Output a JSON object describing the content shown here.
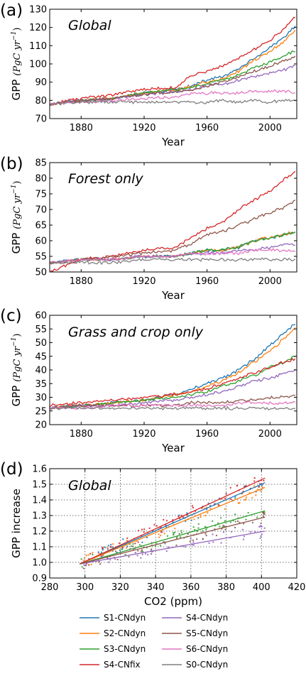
{
  "figure": {
    "legend": [
      {
        "name": "S1-CNdyn",
        "color": "#1f77b4"
      },
      {
        "name": "S2-CNdyn",
        "color": "#ff7f0e"
      },
      {
        "name": "S3-CNdyn",
        "color": "#2ca02c"
      },
      {
        "name": "S4-CNfix",
        "color": "#d62728"
      },
      {
        "name": "S4-CNdyn",
        "color": "#9467bd"
      },
      {
        "name": "S5-CNdyn",
        "color": "#8c564b"
      },
      {
        "name": "S6-CNdyn",
        "color": "#e377c2"
      },
      {
        "name": "S0-CNdyn",
        "color": "#7f7f7f"
      }
    ]
  },
  "chart_data": [
    {
      "panel": "(a)",
      "label": "Global",
      "type": "line",
      "xlabel": "Year",
      "ylabel": "GPP",
      "ylabel_unit": "(PgC yr",
      "xlim": [
        1860,
        2017
      ],
      "ylim": [
        70,
        130
      ],
      "xticks": [
        1880,
        1920,
        1960,
        2000
      ],
      "yticks": [
        70,
        80,
        90,
        100,
        110,
        120,
        130
      ],
      "x": [
        1860,
        1880,
        1900,
        1920,
        1940,
        1950,
        1960,
        1970,
        1980,
        1990,
        2000,
        2010,
        2016
      ],
      "series": [
        {
          "name": "S1-CNdyn",
          "color": "#1f77b4",
          "values": [
            78,
            80,
            81,
            84,
            86,
            88,
            91,
            93,
            97,
            103,
            109,
            115,
            121
          ]
        },
        {
          "name": "S2-CNdyn",
          "color": "#ff7f0e",
          "values": [
            78,
            80,
            81,
            84,
            86,
            88,
            90,
            92,
            96,
            102,
            107,
            113,
            118
          ]
        },
        {
          "name": "S3-CNdyn",
          "color": "#2ca02c",
          "values": [
            78,
            80,
            81,
            84,
            86,
            87,
            89,
            91,
            94,
            98,
            101,
            105,
            107
          ]
        },
        {
          "name": "S4-CNfix",
          "color": "#d62728",
          "values": [
            78,
            81,
            83,
            86,
            87,
            94,
            96,
            99,
            103,
            108,
            113,
            120,
            126
          ]
        },
        {
          "name": "S4-CNdyn",
          "color": "#9467bd",
          "values": [
            78,
            80,
            81,
            83,
            85,
            86,
            88,
            89,
            91,
            93,
            95,
            97,
            99
          ]
        },
        {
          "name": "S5-CNdyn",
          "color": "#8c564b",
          "values": [
            78,
            80,
            81,
            83,
            85,
            86,
            88,
            90,
            93,
            96,
            99,
            102,
            104
          ]
        },
        {
          "name": "S6-CNdyn",
          "color": "#e377c2",
          "values": [
            78,
            79,
            80,
            81,
            82,
            84,
            84,
            84,
            84,
            85,
            85,
            85,
            84
          ]
        },
        {
          "name": "S0-CNdyn",
          "color": "#7f7f7f",
          "values": [
            78,
            79,
            79,
            79,
            79,
            79,
            79,
            80,
            79,
            80,
            79,
            80,
            80
          ]
        }
      ]
    },
    {
      "panel": "(b)",
      "label": "Forest only",
      "type": "line",
      "xlabel": "Year",
      "ylabel": "GPP",
      "ylabel_unit": "(PgC yr",
      "xlim": [
        1860,
        2017
      ],
      "ylim": [
        50,
        85
      ],
      "xticks": [
        1880,
        1920,
        1960,
        2000
      ],
      "yticks": [
        50,
        55,
        60,
        65,
        70,
        75,
        80,
        85
      ],
      "x": [
        1860,
        1880,
        1900,
        1920,
        1940,
        1950,
        1960,
        1970,
        1980,
        1990,
        2000,
        2010,
        2016
      ],
      "series": [
        {
          "name": "S1-CNdyn",
          "color": "#1f77b4",
          "values": [
            53,
            54,
            54,
            55,
            55,
            56,
            57,
            57,
            58,
            60,
            61,
            62,
            63
          ]
        },
        {
          "name": "S2-CNdyn",
          "color": "#ff7f0e",
          "values": [
            53,
            54,
            54,
            55,
            55,
            56,
            57,
            57,
            58,
            60,
            61,
            62,
            63
          ]
        },
        {
          "name": "S3-CNdyn",
          "color": "#2ca02c",
          "values": [
            53,
            54,
            54,
            55,
            55,
            56,
            57,
            57,
            58,
            60,
            61,
            62,
            63
          ]
        },
        {
          "name": "S4-CNfix",
          "color": "#d62728",
          "values": [
            50,
            54,
            55,
            57,
            58,
            61,
            64,
            66,
            70,
            73,
            76,
            80,
            82
          ]
        },
        {
          "name": "S4-CNdyn",
          "color": "#9467bd",
          "values": [
            53,
            54,
            54,
            55,
            55,
            56,
            56,
            56,
            57,
            57,
            58,
            59,
            59
          ]
        },
        {
          "name": "S5-CNdyn",
          "color": "#8c564b",
          "values": [
            53,
            54,
            55,
            56,
            57,
            59,
            62,
            63,
            65,
            67,
            69,
            71,
            73
          ]
        },
        {
          "name": "S6-CNdyn",
          "color": "#e377c2",
          "values": [
            53,
            54,
            54,
            55,
            55,
            56,
            56,
            56,
            56,
            57,
            57,
            57,
            57
          ]
        },
        {
          "name": "S0-CNdyn",
          "color": "#7f7f7f",
          "values": [
            53,
            53,
            53,
            54,
            54,
            54,
            54,
            54,
            54,
            54,
            54,
            54,
            54
          ]
        }
      ]
    },
    {
      "panel": "(c)",
      "label": "Grass and crop only",
      "type": "line",
      "xlabel": "Year",
      "ylabel": "GPP",
      "ylabel_unit": "(PgC yr",
      "xlim": [
        1860,
        2017
      ],
      "ylim": [
        20,
        60
      ],
      "xticks": [
        1880,
        1920,
        1960,
        2000
      ],
      "yticks": [
        20,
        25,
        30,
        35,
        40,
        45,
        50,
        55,
        60
      ],
      "x": [
        1860,
        1880,
        1900,
        1920,
        1940,
        1950,
        1960,
        1970,
        1980,
        1990,
        2000,
        2010,
        2016
      ],
      "series": [
        {
          "name": "S1-CNdyn",
          "color": "#1f77b4",
          "values": [
            26,
            27,
            28,
            29,
            31,
            33,
            35,
            37,
            40,
            44,
            49,
            54,
            57
          ]
        },
        {
          "name": "S2-CNdyn",
          "color": "#ff7f0e",
          "values": [
            26,
            27,
            28,
            29,
            31,
            32,
            34,
            36,
            39,
            43,
            47,
            52,
            55
          ]
        },
        {
          "name": "S3-CNdyn",
          "color": "#2ca02c",
          "values": [
            26,
            27,
            28,
            29,
            30,
            31,
            32,
            34,
            36,
            38,
            41,
            43,
            45
          ]
        },
        {
          "name": "S4-CNfix",
          "color": "#d62728",
          "values": [
            27,
            28,
            29,
            30,
            31,
            32,
            33,
            35,
            37,
            39,
            41,
            43,
            44
          ]
        },
        {
          "name": "S4-CNdyn",
          "color": "#9467bd",
          "values": [
            26,
            27,
            27,
            28,
            29,
            30,
            31,
            32,
            34,
            36,
            37,
            39,
            40
          ]
        },
        {
          "name": "S5-CNdyn",
          "color": "#8c564b",
          "values": [
            26,
            27,
            27,
            27,
            27,
            28,
            28,
            28,
            29,
            29,
            30,
            30,
            31
          ]
        },
        {
          "name": "S6-CNdyn",
          "color": "#e377c2",
          "values": [
            26,
            26,
            27,
            27,
            27,
            27,
            27,
            27,
            28,
            28,
            28,
            28,
            28
          ]
        },
        {
          "name": "S0-CNdyn",
          "color": "#7f7f7f",
          "values": [
            26,
            26,
            26,
            26,
            26,
            26,
            26,
            26,
            26,
            26,
            26,
            26,
            26
          ]
        }
      ]
    },
    {
      "panel": "(d)",
      "label": "Global",
      "type": "scatter",
      "xlabel": "CO2 (ppm)",
      "ylabel": "GPP increase",
      "xlim": [
        280,
        420
      ],
      "ylim": [
        0.9,
        1.6
      ],
      "xticks": [
        280,
        300,
        320,
        340,
        360,
        380,
        400,
        420
      ],
      "yticks": [
        0.9,
        1.0,
        1.1,
        1.2,
        1.3,
        1.4,
        1.5,
        1.6
      ],
      "grid": true,
      "fit_lines": [
        {
          "name": "S1-CNdyn",
          "color": "#1f77b4",
          "x": [
            297,
            402
          ],
          "y": [
            0.99,
            1.51
          ]
        },
        {
          "name": "S2-CNdyn",
          "color": "#ff7f0e",
          "x": [
            297,
            402
          ],
          "y": [
            0.99,
            1.48
          ]
        },
        {
          "name": "S3-CNdyn",
          "color": "#2ca02c",
          "x": [
            297,
            402
          ],
          "y": [
            0.99,
            1.33
          ]
        },
        {
          "name": "S4-CNfix",
          "color": "#d62728",
          "x": [
            297,
            402
          ],
          "y": [
            0.99,
            1.54
          ]
        },
        {
          "name": "S4-CNdyn",
          "color": "#9467bd",
          "x": [
            297,
            402
          ],
          "y": [
            0.99,
            1.2
          ]
        },
        {
          "name": "S5-CNdyn",
          "color": "#8c564b",
          "x": [
            297,
            402
          ],
          "y": [
            0.99,
            1.29
          ]
        }
      ]
    }
  ]
}
